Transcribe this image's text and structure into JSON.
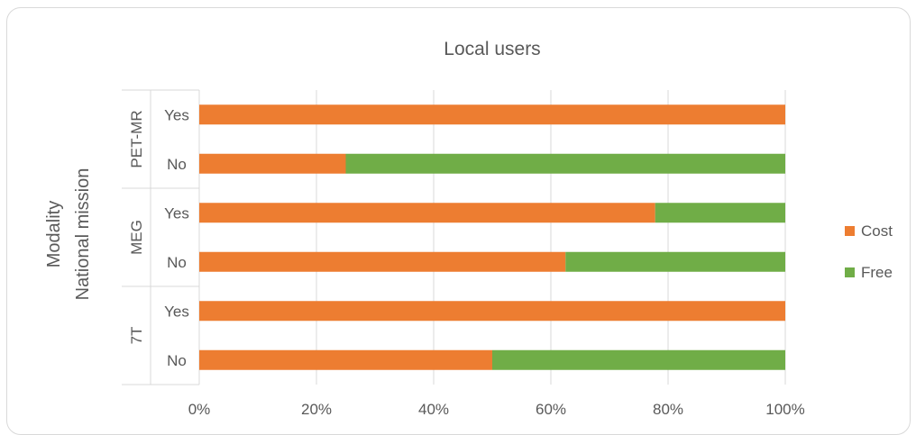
{
  "chart_data": {
    "type": "bar",
    "orientation": "horizontal",
    "stacked": "percent",
    "title": "Local users",
    "y_axis_titles": [
      "Modality",
      "National mission"
    ],
    "groups": [
      {
        "name": "PET-MR",
        "categories": [
          "Yes",
          "No"
        ]
      },
      {
        "name": "MEG",
        "categories": [
          "Yes",
          "No"
        ]
      },
      {
        "name": "7T",
        "categories": [
          "Yes",
          "No"
        ]
      }
    ],
    "series": [
      {
        "name": "Cost",
        "color": "#ed7d31",
        "values": [
          100,
          25,
          77.8,
          62.5,
          100,
          50
        ]
      },
      {
        "name": "Free",
        "color": "#70ad47",
        "values": [
          0,
          75,
          22.2,
          37.5,
          0,
          50
        ]
      }
    ],
    "xticks": [
      "0%",
      "20%",
      "40%",
      "60%",
      "80%",
      "100%"
    ],
    "xlim": [
      0,
      100
    ],
    "grid": true,
    "legend": "right"
  }
}
